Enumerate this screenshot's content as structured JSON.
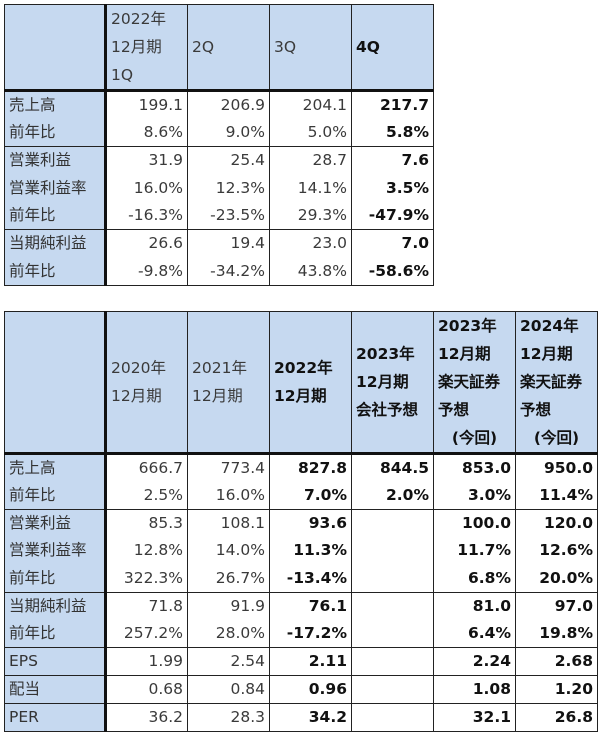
{
  "quarterly_table": {
    "headers": [
      [],
      [
        "2022年",
        "12月期",
        "1Q"
      ],
      [
        "2Q"
      ],
      [
        "3Q"
      ],
      [
        "4Q"
      ]
    ],
    "groups": [
      [
        {
          "label": "売上高",
          "values": [
            "199.1",
            "206.9",
            "204.1",
            "217.7"
          ]
        },
        {
          "label": "前年比",
          "values": [
            "8.6%",
            "9.0%",
            "5.0%",
            "5.8%"
          ]
        }
      ],
      [
        {
          "label": "営業利益",
          "values": [
            "31.9",
            "25.4",
            "28.7",
            "7.6"
          ]
        },
        {
          "label": "営業利益率",
          "values": [
            "16.0%",
            "12.3%",
            "14.1%",
            "3.5%"
          ]
        },
        {
          "label": "前年比",
          "values": [
            "-16.3%",
            "-23.5%",
            "29.3%",
            "-47.9%"
          ]
        }
      ],
      [
        {
          "label": "当期純利益",
          "values": [
            "26.6",
            "19.4",
            "23.0",
            "7.0"
          ]
        },
        {
          "label": "前年比",
          "values": [
            "-9.8%",
            "-34.2%",
            "43.8%",
            "-58.6%"
          ]
        }
      ]
    ]
  },
  "annual_table": {
    "headers": [
      [],
      [
        "2020年",
        "12月期"
      ],
      [
        "2021年",
        "12月期"
      ],
      [
        "2022年",
        "12月期"
      ],
      [
        "2023年",
        "12月期",
        "会社予想"
      ],
      [
        "2023年",
        "12月期",
        "楽天証券",
        "予想",
        "(今回)"
      ],
      [
        "2024年",
        "12月期",
        "楽天証券",
        "予想",
        "(今回)"
      ]
    ],
    "groups": [
      [
        {
          "label": "売上高",
          "values": [
            "666.7",
            "773.4",
            "827.8",
            "844.5",
            "853.0",
            "950.0"
          ]
        },
        {
          "label": "前年比",
          "values": [
            "2.5%",
            "16.0%",
            "7.0%",
            "2.0%",
            "3.0%",
            "11.4%"
          ]
        }
      ],
      [
        {
          "label": "営業利益",
          "values": [
            "85.3",
            "108.1",
            "93.6",
            "",
            "100.0",
            "120.0"
          ]
        },
        {
          "label": "営業利益率",
          "values": [
            "12.8%",
            "14.0%",
            "11.3%",
            "",
            "11.7%",
            "12.6%"
          ]
        },
        {
          "label": "前年比",
          "values": [
            "322.3%",
            "26.7%",
            "-13.4%",
            "",
            "6.8%",
            "20.0%"
          ]
        }
      ],
      [
        {
          "label": "当期純利益",
          "values": [
            "71.8",
            "91.9",
            "76.1",
            "",
            "81.0",
            "97.0"
          ]
        },
        {
          "label": "前年比",
          "values": [
            "257.2%",
            "28.0%",
            "-17.2%",
            "",
            "6.4%",
            "19.8%"
          ]
        }
      ],
      [
        {
          "label": "EPS",
          "values": [
            "1.99",
            "2.54",
            "2.11",
            "",
            "2.24",
            "2.68"
          ]
        }
      ],
      [
        {
          "label": "配当",
          "values": [
            "0.68",
            "0.84",
            "0.96",
            "",
            "1.08",
            "1.20"
          ]
        }
      ],
      [
        {
          "label": "PER",
          "values": [
            "36.2",
            "28.3",
            "34.2",
            "",
            "32.1",
            "26.8"
          ]
        }
      ]
    ]
  },
  "colors": {
    "header_fill": "#c6d9f0",
    "border": "#222222"
  }
}
